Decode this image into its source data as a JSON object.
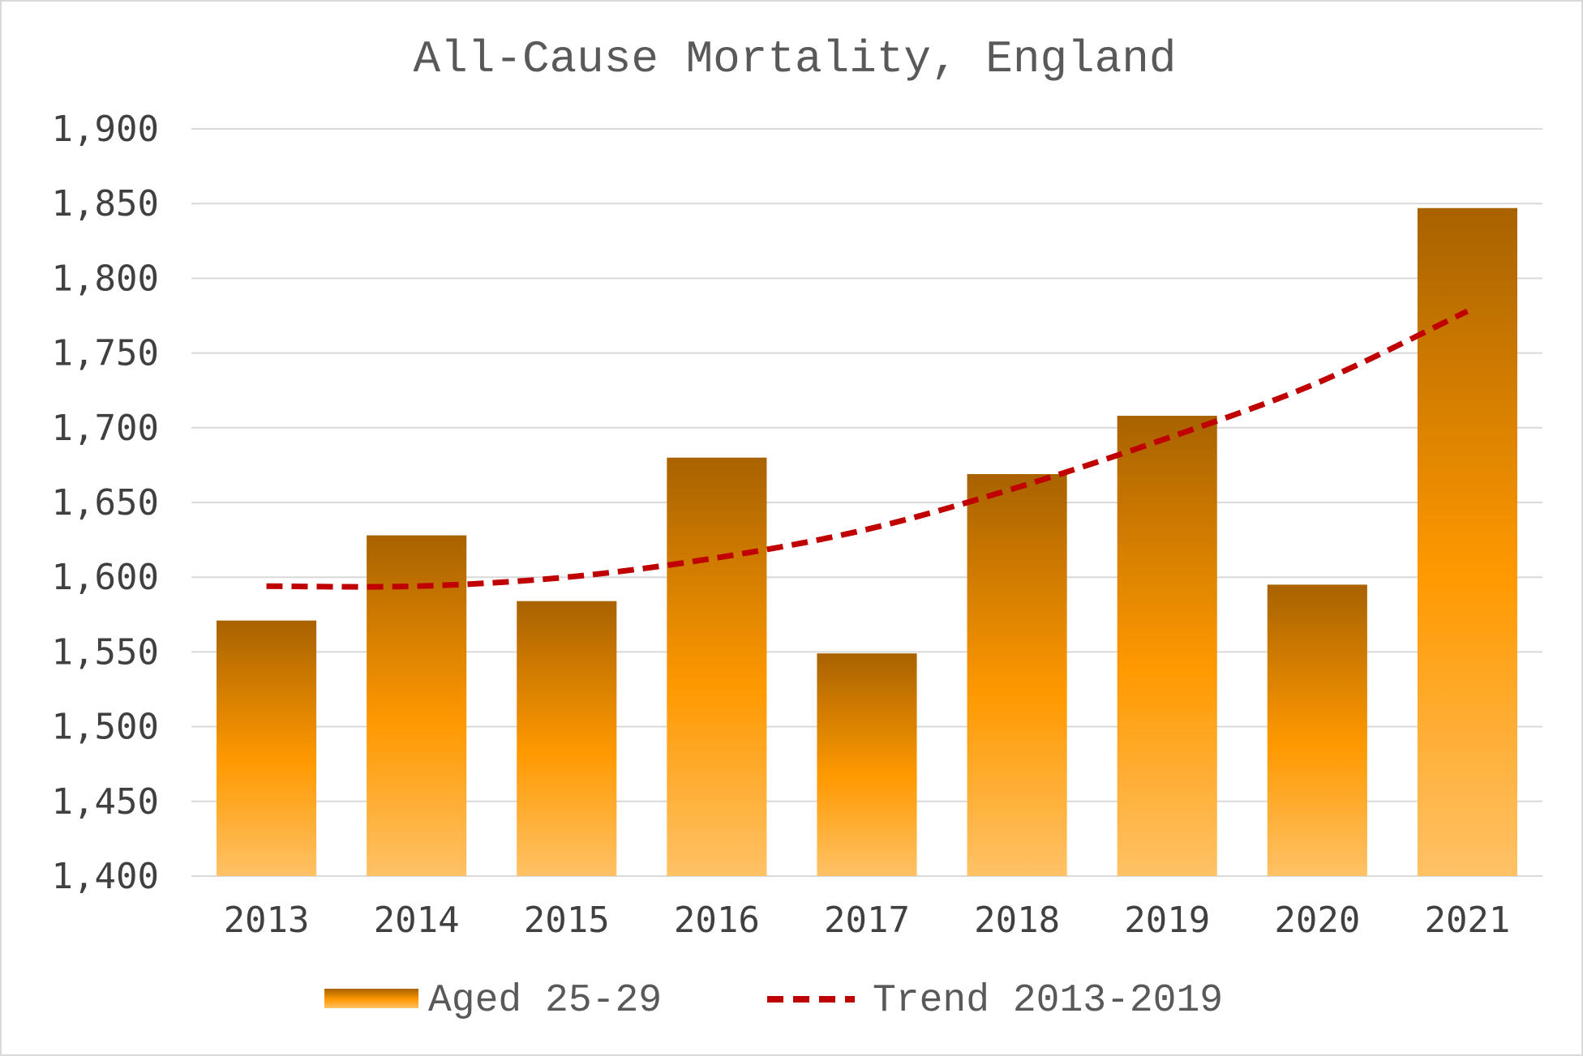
{
  "chart_data": {
    "type": "bar",
    "title": "All-Cause Mortality, England",
    "categories": [
      "2013",
      "2014",
      "2015",
      "2016",
      "2017",
      "2018",
      "2019",
      "2020",
      "2021"
    ],
    "series": [
      {
        "name": "Aged 25-29",
        "kind": "bar",
        "values": [
          1571,
          1628,
          1584,
          1680,
          1549,
          1669,
          1708,
          1595,
          1847
        ]
      },
      {
        "name": "Trend 2013-2019",
        "kind": "line",
        "style": "dashed",
        "values": [
          1594,
          1594,
          1600,
          1613,
          1632,
          1660,
          1693,
          1730,
          1778
        ]
      }
    ],
    "ylim": [
      1400,
      1900
    ],
    "yticks": [
      1400,
      1450,
      1500,
      1550,
      1600,
      1650,
      1700,
      1750,
      1800,
      1850,
      1900
    ],
    "ytick_labels": [
      "1,400",
      "1,450",
      "1,500",
      "1,550",
      "1,600",
      "1,650",
      "1,700",
      "1,750",
      "1,800",
      "1,850",
      "1,900"
    ],
    "grid": true,
    "legend_position": "bottom",
    "colors": {
      "bar_top": "#a86200",
      "bar_mid": "#ff9900",
      "bar_bottom": "#ffc266",
      "trend": "#c00000",
      "grid": "#d9d9d9"
    }
  }
}
